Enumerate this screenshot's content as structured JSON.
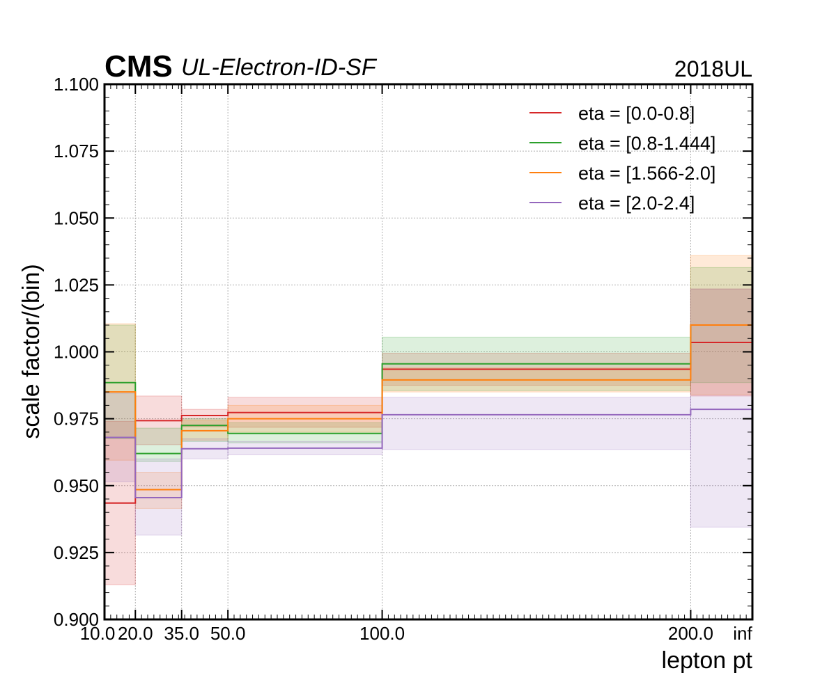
{
  "header": {
    "experiment": "CMS",
    "label": "UL-Electron-ID-SF",
    "year": "2018UL"
  },
  "chart_data": {
    "type": "line",
    "style": "step",
    "title": "",
    "xlabel": "lepton pt",
    "ylabel": "scale factor/(bin)",
    "bin_edges": [
      10.0,
      20.0,
      35.0,
      50.0,
      100.0,
      200.0,
      "inf"
    ],
    "x_tick_labels": [
      "10.0",
      "20.0",
      "35.0",
      "50.0",
      "100.0",
      "200.0",
      "inf"
    ],
    "ylim": [
      0.9,
      1.1
    ],
    "y_tick_labels": [
      "0.900",
      "0.925",
      "0.950",
      "0.975",
      "1.000",
      "1.025",
      "1.050",
      "1.075",
      "1.100"
    ],
    "grid": true,
    "legend_placement": "top-right",
    "series": [
      {
        "name": "eta = [0.0-0.8]",
        "color": "#d62728",
        "values": [
          0.9435,
          0.9743,
          0.9762,
          0.9773,
          0.9935,
          1.0035
        ],
        "band_low": [
          0.913,
          0.9653,
          0.972,
          0.9718,
          0.9875,
          0.9835
        ],
        "band_high": [
          0.974,
          0.9835,
          0.9785,
          0.983,
          0.9995,
          1.0235
        ]
      },
      {
        "name": "eta = [0.8-1.444]",
        "color": "#2ca02c",
        "values": [
          0.9885,
          0.962,
          0.9725,
          0.9695,
          0.9955,
          1.01
        ],
        "band_low": [
          0.9675,
          0.959,
          0.9665,
          0.966,
          0.9855,
          0.9885
        ],
        "band_high": [
          1.01,
          0.9715,
          0.975,
          0.9735,
          1.0055,
          1.0315
        ]
      },
      {
        "name": "eta = [1.566-2.0]",
        "color": "#ff7f0e",
        "values": [
          0.985,
          0.9485,
          0.9705,
          0.975,
          0.9895,
          1.01
        ],
        "band_low": [
          0.9595,
          0.9415,
          0.967,
          0.97,
          0.985,
          0.984
        ],
        "band_high": [
          1.0105,
          0.955,
          0.9745,
          0.98,
          0.994,
          1.036
        ]
      },
      {
        "name": "eta = [2.0-2.4]",
        "color": "#9467bd",
        "values": [
          0.968,
          0.9455,
          0.9638,
          0.964,
          0.9765,
          0.9785
        ],
        "band_low": [
          0.9515,
          0.9315,
          0.96,
          0.9615,
          0.9635,
          0.9345
        ],
        "band_high": [
          0.9845,
          0.96,
          0.9675,
          0.9665,
          0.983,
          1.0235
        ]
      }
    ]
  }
}
